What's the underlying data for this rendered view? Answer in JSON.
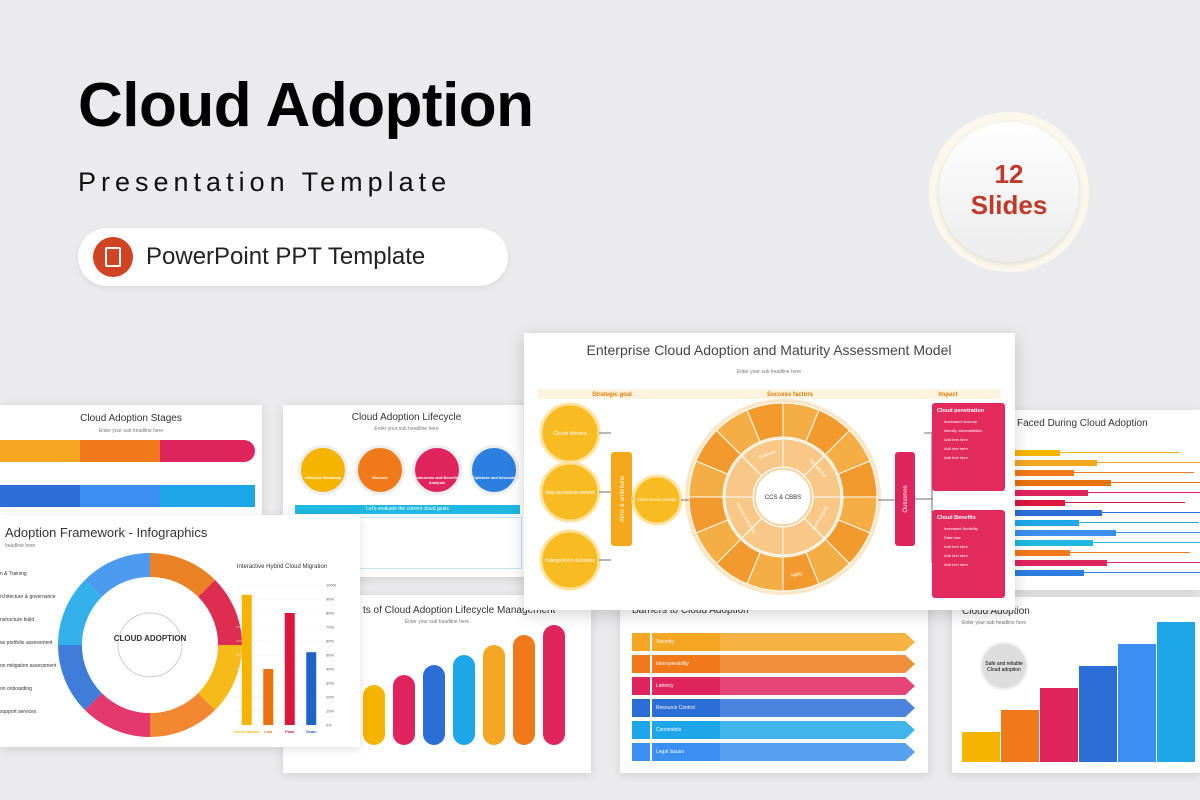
{
  "header": {
    "title": "Cloud Adoption",
    "subtitle": "Presentation Template",
    "format": "PowerPoint PPT Template"
  },
  "badge": {
    "count": "12",
    "label": "Slides"
  },
  "slides": {
    "stages": {
      "title": "Cloud Adoption Stages",
      "subtitle": "Enter your sub headline here"
    },
    "lifecycle": {
      "title": "Cloud Adoption Lifecycle",
      "subtitle": "Enter your sub headline here",
      "steps": [
        "Lifecycle Roadmap",
        "Execute",
        "Outcomes and Benefits Analysis",
        "Optimize and Innovate"
      ],
      "banner": "Let's evaluate the current cloud goals"
    },
    "maturity": {
      "title": "Enterprise Cloud Adoption and Maturity Assessment Model",
      "subtitle": "Enter your sub headline here",
      "columns": [
        "Strategic goal",
        "Success factors",
        "Impact"
      ],
      "goals": [
        "Cloud drivers",
        "Strategic cloud adoption plan development",
        "Challenges faced in cloud adoption"
      ],
      "aims": "Aims & ambitions",
      "provider": "Cloud service provider",
      "factors": [
        "Business",
        "Operational",
        "Technological",
        "Human resources",
        "Agility"
      ],
      "core": "CCS & CBBS",
      "outcomes": "Outcomes",
      "impacts": [
        {
          "title": "Cloud penetration",
          "items": [
            "Increased revenue",
            "Identify vulnerabilities",
            "Add text here",
            "Add text here",
            "Add text here"
          ]
        },
        {
          "title": "Cloud Benefits",
          "items": [
            "Increased flexibility",
            "Data loss",
            "Add text here",
            "Add text here",
            "Add text here"
          ]
        }
      ]
    },
    "challenges": {
      "title": "Faced During Cloud Adoption"
    },
    "framework": {
      "title": "Adoption Framework - Infographics",
      "subtitle": "headline here",
      "items": [
        "n & Training",
        "rchitecture & governance",
        "nstructure build",
        "se portfolio assessment",
        "on mitigation assessment",
        "on onboarding",
        "support services"
      ],
      "center": "CLOUD ADOPTION",
      "chart": {
        "title": "Interactive Hybrid Cloud Migration",
        "categories": [
          "On-Premises",
          "Low",
          "Peak",
          "Scale"
        ],
        "values": [
          93,
          40,
          80,
          52
        ],
        "colors": [
          "#f5b400",
          "#e8730c",
          "#d9173f",
          "#1f63c6"
        ],
        "ylim": [
          0,
          100
        ],
        "yticks": [
          {
            "value": 0,
            "label": "0%"
          },
          {
            "value": 10,
            "label": "10%"
          },
          {
            "value": 20,
            "label": "20%"
          },
          {
            "value": 30,
            "label": "30%"
          },
          {
            "value": 40,
            "label": "40%"
          },
          {
            "value": 50,
            "label": "50%"
          },
          {
            "value": 60,
            "label": "60%"
          },
          {
            "value": 70,
            "label": "70%"
          },
          {
            "value": 80,
            "label": "80%"
          },
          {
            "value": 90,
            "label": "90%"
          },
          {
            "value": 100,
            "label": "100%"
          }
        ]
      }
    },
    "management": {
      "title": "ts of Cloud Adoption Lifecycle Management",
      "subtitle": "Enter your sub headline here"
    },
    "barriers": {
      "title": "Barriers to Cloud Adoption",
      "rows": [
        "Security",
        "Interoperability",
        "Latency",
        "Resource Control",
        "Constraints",
        "Legal Issues"
      ]
    },
    "growth": {
      "title": "Cloud Adoption",
      "subtitle": "Enter your sub headline here",
      "center": "Safe and reliable Cloud adoption"
    }
  }
}
